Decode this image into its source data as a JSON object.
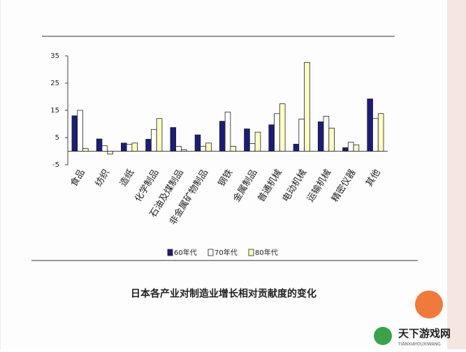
{
  "chart_data": {
    "type": "bar",
    "title": "日本各产业对制造业增长相对贡献度的变化",
    "categories": [
      "食品",
      "纺织",
      "造纸",
      "化学制品",
      "石油及煤制品",
      "非金属矿物制品",
      "钢铁",
      "金属制品",
      "普通机械",
      "电动机械",
      "运输机械",
      "精密仪器",
      "其他"
    ],
    "series": [
      {
        "name": "60年代",
        "color": "#1c1c78",
        "values": [
          13,
          4.5,
          3,
          4.4,
          8.7,
          6,
          11,
          8.2,
          9.7,
          2.6,
          10.8,
          1.3,
          19.2
        ]
      },
      {
        "name": "70年代",
        "color": "#ffffff",
        "values": [
          15,
          2,
          2.5,
          8,
          1.8,
          1.8,
          14.4,
          2.8,
          13.8,
          11.8,
          12.8,
          3.3,
          12
        ]
      },
      {
        "name": "80年代",
        "color": "#ffffc4",
        "values": [
          1,
          -1,
          3,
          12,
          0.5,
          3,
          1.8,
          7,
          17.4,
          32.6,
          8.5,
          2.3,
          13.8
        ]
      }
    ],
    "ylim": [
      -5,
      35
    ],
    "yticks": [
      -5,
      5,
      15,
      25,
      35
    ]
  },
  "watermark": {
    "title": "天下游戏网",
    "subtitle": "TIANXIAYOUXIWANG"
  }
}
